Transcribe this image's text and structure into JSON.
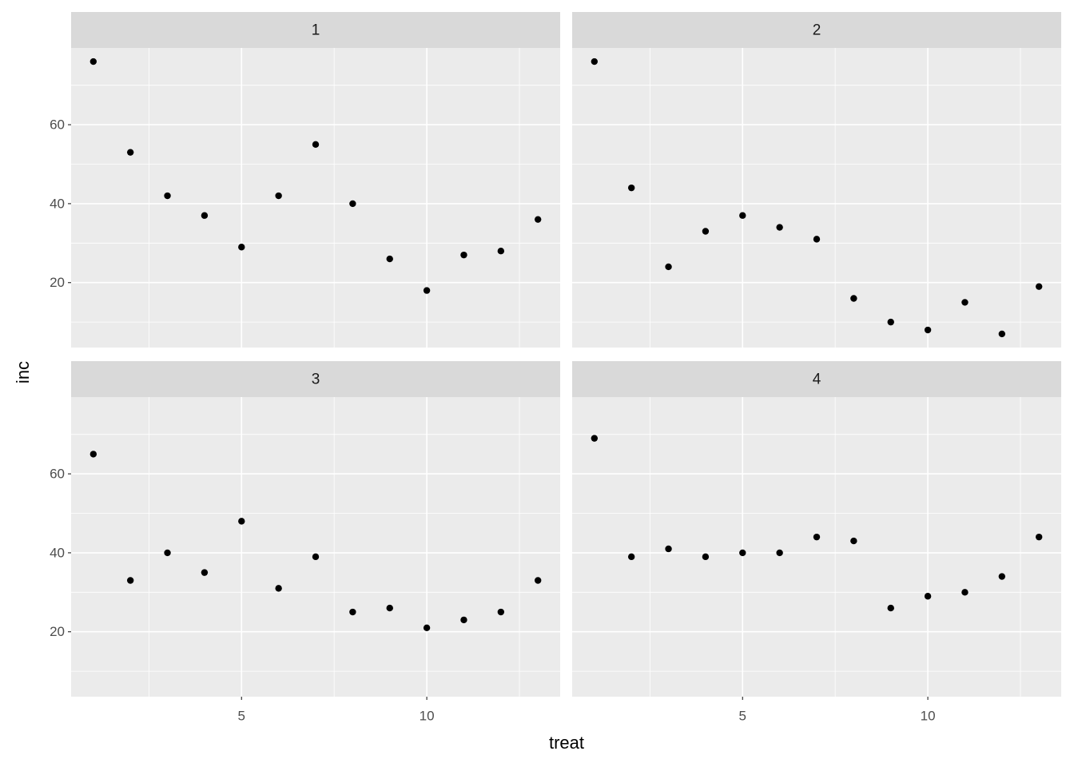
{
  "chart_data": {
    "type": "scatter",
    "xlabel": "treat",
    "ylabel": "inc",
    "color": "#000000",
    "grid": true,
    "x": [
      1,
      2,
      3,
      4,
      5,
      6,
      7,
      8,
      9,
      10,
      11,
      12,
      13
    ],
    "xlim": [
      0.4,
      13.6
    ],
    "xticks": [
      5,
      10
    ],
    "xminor": [
      2.5,
      7.5,
      12.5
    ],
    "ylim": [
      3.55,
      79.45
    ],
    "yticks": [
      20,
      40,
      60
    ],
    "yminor": [
      10,
      30,
      50,
      70
    ],
    "panels": [
      {
        "label": "1",
        "values": [
          76,
          53,
          42,
          37,
          29,
          42,
          55,
          40,
          26,
          18,
          27,
          28,
          36
        ]
      },
      {
        "label": "2",
        "values": [
          76,
          44,
          24,
          33,
          37,
          34,
          31,
          16,
          10,
          8,
          15,
          7,
          19
        ]
      },
      {
        "label": "3",
        "values": [
          65,
          33,
          40,
          35,
          48,
          31,
          39,
          25,
          26,
          21,
          23,
          25,
          33
        ]
      },
      {
        "label": "4",
        "values": [
          69,
          39,
          41,
          39,
          40,
          40,
          44,
          43,
          26,
          29,
          30,
          34,
          44
        ]
      }
    ]
  }
}
